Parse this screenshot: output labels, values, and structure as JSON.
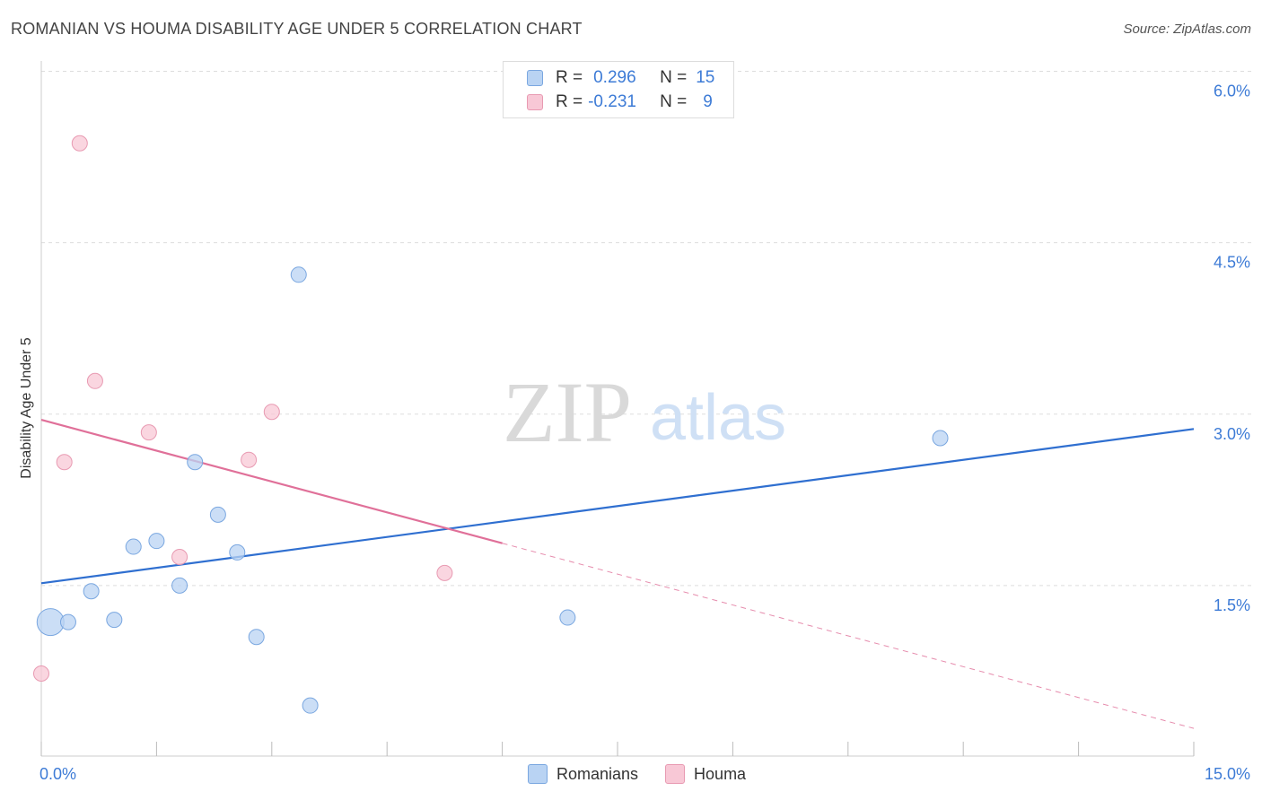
{
  "header": {
    "title": "ROMANIAN VS HOUMA DISABILITY AGE UNDER 5 CORRELATION CHART",
    "source": "Source: ZipAtlas.com"
  },
  "watermark": {
    "zip": "ZIP",
    "atlas": "atlas"
  },
  "legend": {
    "rows": [
      {
        "r_label": "R =",
        "r_value": "0.296",
        "n_label": "N =",
        "n_value": "15"
      },
      {
        "r_label": "R =",
        "r_value": "-0.231",
        "n_label": "N =",
        "n_value": "9"
      }
    ]
  },
  "colors": {
    "blue_fill": "#b9d3f3",
    "blue_stroke": "#7aa7e0",
    "blue_line": "#2f6fd0",
    "pink_fill": "#f8c8d6",
    "pink_stroke": "#e89ab2",
    "pink_line": "#e07099",
    "grid": "#dddddd",
    "tick_text": "#3d7bd6"
  },
  "chart_data": {
    "type": "scatter",
    "title": "ROMANIAN VS HOUMA DISABILITY AGE UNDER 5 CORRELATION CHART",
    "xlabel": "",
    "ylabel": "Disability Age Under 5",
    "xlim": [
      0,
      15
    ],
    "ylim": [
      0,
      6.2
    ],
    "x_tick_labels": [
      "0.0%",
      "15.0%"
    ],
    "y_ticks": [
      1.5,
      3.0,
      4.5,
      6.0
    ],
    "y_tick_labels": [
      "1.5%",
      "3.0%",
      "4.5%",
      "6.0%"
    ],
    "legend_position": "top-center",
    "series": [
      {
        "name": "Romanians",
        "points": [
          {
            "x": 0.12,
            "y": 1.18,
            "big": true
          },
          {
            "x": 0.35,
            "y": 1.18
          },
          {
            "x": 0.65,
            "y": 1.45
          },
          {
            "x": 0.95,
            "y": 1.2
          },
          {
            "x": 1.2,
            "y": 1.84
          },
          {
            "x": 1.5,
            "y": 1.89
          },
          {
            "x": 1.8,
            "y": 1.5
          },
          {
            "x": 2.0,
            "y": 2.58
          },
          {
            "x": 2.3,
            "y": 2.12
          },
          {
            "x": 2.55,
            "y": 1.79
          },
          {
            "x": 2.8,
            "y": 1.05
          },
          {
            "x": 3.35,
            "y": 4.22
          },
          {
            "x": 3.5,
            "y": 0.45
          },
          {
            "x": 6.85,
            "y": 1.22
          },
          {
            "x": 11.7,
            "y": 2.79
          }
        ],
        "trend": {
          "x0": 0.0,
          "y0": 1.52,
          "x1": 15.0,
          "y1": 2.87
        }
      },
      {
        "name": "Houma",
        "points": [
          {
            "x": 0.0,
            "y": 0.73
          },
          {
            "x": 0.3,
            "y": 2.58
          },
          {
            "x": 0.5,
            "y": 5.37
          },
          {
            "x": 0.7,
            "y": 3.29
          },
          {
            "x": 1.4,
            "y": 2.84
          },
          {
            "x": 1.8,
            "y": 1.75
          },
          {
            "x": 2.7,
            "y": 2.6
          },
          {
            "x": 3.0,
            "y": 3.02
          },
          {
            "x": 5.25,
            "y": 1.61
          }
        ],
        "trend": {
          "x0": 0.0,
          "y0": 2.95,
          "x1": 6.0,
          "y1": 1.87
        },
        "trend_dashed": {
          "x0": 6.0,
          "y0": 1.87,
          "x1": 15.0,
          "y1": 0.25
        }
      }
    ]
  }
}
